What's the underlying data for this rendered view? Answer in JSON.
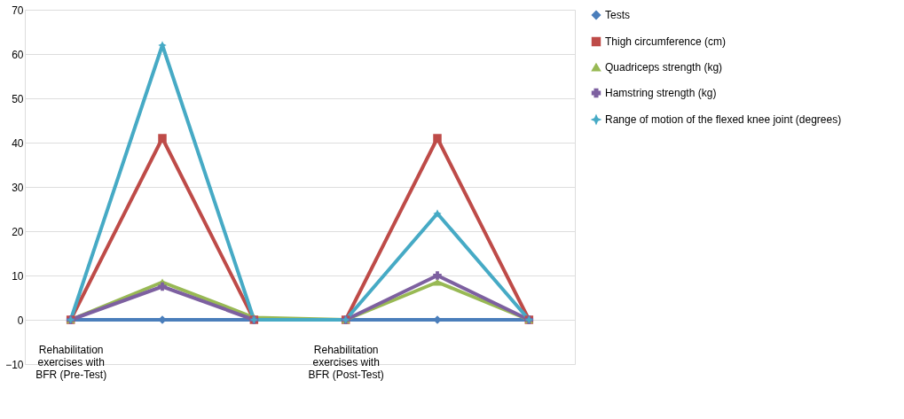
{
  "chart_data": {
    "type": "line",
    "categories": [
      "Rehabilitation exercises with BFR (Pre-Test)",
      null,
      null,
      "Rehabilitation exercises with BFR (Post-Test)",
      null,
      null
    ],
    "series": [
      {
        "name": "Tests",
        "color": "#4a7ebb",
        "marker": "diamond",
        "values": [
          0,
          0,
          0,
          0,
          0,
          0
        ]
      },
      {
        "name": "Thigh circumference (cm)",
        "color": "#be4b48",
        "marker": "square",
        "values": [
          0,
          41,
          0,
          0,
          41,
          0
        ]
      },
      {
        "name": "Quadriceps strength (kg)",
        "color": "#98b954",
        "marker": "triangle",
        "values": [
          0,
          8.5,
          0.5,
          0,
          8.5,
          0
        ]
      },
      {
        "name": "Hamstring strength (kg)",
        "color": "#7d60a0",
        "marker": "cross",
        "values": [
          0,
          7.5,
          0,
          0,
          10,
          0
        ]
      },
      {
        "name": "Range of motion of the flexed knee joint (degrees)",
        "color": "#46aac5",
        "marker": "star",
        "values": [
          0,
          62,
          0,
          0,
          24,
          0
        ]
      }
    ],
    "ylim": [
      -10,
      70
    ],
    "yticks": [
      -10,
      0,
      10,
      20,
      30,
      40,
      50,
      60,
      70
    ],
    "grid": "y",
    "legend": "right",
    "line_style": "solid"
  }
}
